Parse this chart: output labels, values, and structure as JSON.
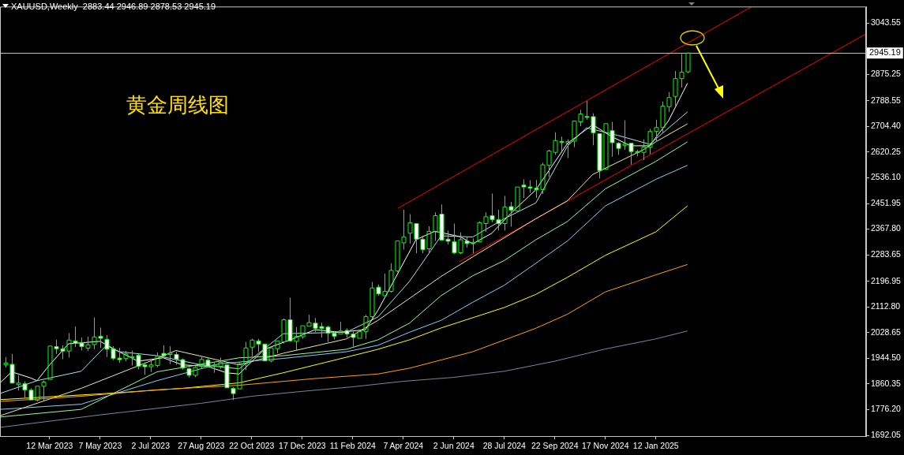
{
  "chart_data": {
    "type": "candlestick",
    "title": "XAUUSD,Weekly  2883.44 2946.89 2878.53 2945.19",
    "annotations": [
      "黄金周线图"
    ],
    "color": "#00ff00",
    "colors": [
      "#00ff00",
      "#ffffff",
      "#00ff00",
      "#ffffff",
      "#ffffff",
      "#00ff00",
      "#00ff00",
      "#00ff00",
      "#ffffff",
      "#ffffff",
      "#00ff00",
      "#ffffff",
      "#ffffff",
      "#00ff00",
      "#00ff00",
      "#ffffff",
      "#ffffff",
      "#ffffff",
      "#ffffff",
      "#00ff00",
      "#00ff00",
      "#ffffff",
      "#ffffff",
      "#00ff00",
      "#00ff00",
      "#ffffff",
      "#00ff00",
      "#ffffff",
      "#ffffff",
      "#ffffff",
      "#00ff00",
      "#00ff00",
      "#ffffff",
      "#00ff00",
      "#00ff00",
      "#ffffff",
      "#ffffff",
      "#00ff00",
      "#00ff00",
      "#00ff00",
      "#ffffff",
      "#ffffff",
      "#00ff00",
      "#00ff00",
      "#00ff00",
      "#ffffff",
      "#00ff00",
      "#00ff00",
      "#00ff00",
      "#ffffff",
      "#ffffff",
      "#ffffff",
      "#ffffff",
      "#00ff00",
      "#ffffff",
      "#ffffff",
      "#00ff00",
      "#00ff00",
      "#00ff00",
      "#ffffff",
      "#00ff00",
      "#00ff00",
      "#00ff00",
      "#00ff00",
      "#00ff00",
      "#ffffff",
      "#ffffff",
      "#00ff00",
      "#00ff00",
      "#ffffff",
      "#ffffff",
      "#ffffff",
      "#00ff00",
      "#ffffff",
      "#00ff00",
      "#00ff00",
      "#00ff00",
      "#ffffff",
      "#ffffff",
      "#00ff00",
      "#ffffff",
      "#00ff00",
      "#ffffff",
      "#ffffff",
      "#ffffff",
      "#00ff00",
      "#00ff00",
      "#00ff00",
      "#ffffff",
      "#00ff00",
      "#00ff00",
      "#00ff00",
      "#ffffff",
      "#ffffff",
      "#ffffff",
      "#00ff00",
      "#ffffff",
      "#ffffff",
      "#00ff00",
      "#ffffff",
      "#ffffff",
      "#00ff00",
      "#00ff00",
      "#00ff00",
      "#00ff00",
      "#00ff00",
      "#00ff00",
      "#00ff00",
      "#00ff00"
    ],
    "x": [
      "2023-01-22",
      "2023-01-29",
      "2023-02-05",
      "2023-02-12",
      "2023-02-19",
      "2023-02-26",
      "2023-03-05",
      "2023-03-12",
      "2023-03-19",
      "2023-03-26",
      "2023-04-02",
      "2023-04-09",
      "2023-04-16",
      "2023-04-23",
      "2023-04-30",
      "2023-05-07",
      "2023-05-14",
      "2023-05-21",
      "2023-05-28",
      "2023-06-04",
      "2023-06-11",
      "2023-06-18",
      "2023-06-25",
      "2023-07-02",
      "2023-07-09",
      "2023-07-16",
      "2023-07-23",
      "2023-07-30",
      "2023-08-06",
      "2023-08-13",
      "2023-08-20",
      "2023-08-27",
      "2023-09-03",
      "2023-09-10",
      "2023-09-17",
      "2023-09-24",
      "2023-10-01",
      "2023-10-08",
      "2023-10-15",
      "2023-10-22",
      "2023-10-29",
      "2023-11-05",
      "2023-11-12",
      "2023-11-19",
      "2023-11-26",
      "2023-12-03",
      "2023-12-10",
      "2023-12-17",
      "2023-12-24",
      "2023-12-31",
      "2024-01-07",
      "2024-01-14",
      "2024-01-21",
      "2024-01-28",
      "2024-02-04",
      "2024-02-11",
      "2024-02-18",
      "2024-02-25",
      "2024-03-03",
      "2024-03-10",
      "2024-03-17",
      "2024-03-24",
      "2024-03-31",
      "2024-04-07",
      "2024-04-14",
      "2024-04-21",
      "2024-04-28",
      "2024-05-05",
      "2024-05-12",
      "2024-05-19",
      "2024-05-26",
      "2024-06-02",
      "2024-06-09",
      "2024-06-16",
      "2024-06-23",
      "2024-06-30",
      "2024-07-07",
      "2024-07-14",
      "2024-07-21",
      "2024-07-28",
      "2024-08-04",
      "2024-08-11",
      "2024-08-18",
      "2024-08-25",
      "2024-09-01",
      "2024-09-08",
      "2024-09-15",
      "2024-09-22",
      "2024-09-29",
      "2024-10-06",
      "2024-10-13",
      "2024-10-20",
      "2024-10-27",
      "2024-11-03",
      "2024-11-10",
      "2024-11-17",
      "2024-11-24",
      "2024-12-01",
      "2024-12-08",
      "2024-12-15",
      "2024-12-22",
      "2024-12-29",
      "2025-01-05",
      "2025-01-12",
      "2025-01-19",
      "2025-01-26",
      "2025-02-02",
      "2025-02-09",
      "2025-02-16"
    ],
    "ohlc": [
      [
        1922.8,
        1948.5,
        1914.3,
        1928.8
      ],
      [
        1924.6,
        1958.7,
        1861.3,
        1863.0
      ],
      [
        1858.0,
        1888.7,
        1839.0,
        1863.0
      ],
      [
        1861.0,
        1869.0,
        1815.0,
        1840.8
      ],
      [
        1840.0,
        1846.0,
        1806.6,
        1808.0
      ],
      [
        1807.0,
        1854.5,
        1803.0,
        1853.0
      ],
      [
        1852.8,
        1871.6,
        1804.9,
        1866.4
      ],
      [
        1875.0,
        1987.0,
        1871.6,
        1984.4
      ],
      [
        1982.7,
        2005.8,
        1958.7,
        1975.8
      ],
      [
        1975.8,
        1987.0,
        1941.7,
        1968.0
      ],
      [
        1968.2,
        2027.1,
        1946.8,
        2004.1
      ],
      [
        2001.5,
        2048.5,
        1981.0,
        1993.0
      ],
      [
        1995.5,
        2012.6,
        1969.9,
        1982.7
      ],
      [
        1977.6,
        2015.2,
        1968.2,
        1988.7
      ],
      [
        1989.5,
        2078.4,
        1974.1,
        2014.3
      ],
      [
        2016.9,
        2045.0,
        1978.4,
        2010.0
      ],
      [
        2006.6,
        2020.3,
        1948.5,
        1974.1
      ],
      [
        1975.8,
        1984.4,
        1938.2,
        1944.2
      ],
      [
        1945.0,
        1978.4,
        1929.7,
        1940.0
      ],
      [
        1943.4,
        1969.0,
        1934.8,
        1958.7
      ],
      [
        1948.5,
        1969.9,
        1921.1,
        1949.5
      ],
      [
        1954.5,
        1958.7,
        1908.3,
        1918.6
      ],
      [
        1922.8,
        1931.4,
        1890.4,
        1916.9
      ],
      [
        1916.9,
        1935.7,
        1899.8,
        1922.8
      ],
      [
        1921.0,
        1963.9,
        1915.0,
        1951.0
      ],
      [
        1960.5,
        1987.0,
        1944.2,
        1952.8
      ],
      [
        1957.0,
        1983.6,
        1925.0,
        1961.0
      ],
      [
        1957.0,
        1965.6,
        1922.9,
        1941.6
      ],
      [
        1940.0,
        1944.2,
        1907.5,
        1912.6
      ],
      [
        1910.0,
        1914.3,
        1881.8,
        1888.7
      ],
      [
        1888.7,
        1918.6,
        1882.7,
        1914.3
      ],
      [
        1918.6,
        1948.5,
        1910.0,
        1940.6
      ],
      [
        1938.3,
        1946.8,
        1914.3,
        1918.6
      ],
      [
        1918.6,
        1931.4,
        1897.2,
        1922.8
      ],
      [
        1918.6,
        1946.8,
        1910.0,
        1931.4
      ],
      [
        1922.8,
        1924.6,
        1844.2,
        1847.6
      ],
      [
        1845.9,
        1850.2,
        1807.5,
        1828.8
      ],
      [
        1844.2,
        1931.4,
        1841.7,
        1927.1
      ],
      [
        1927.0,
        1998.1,
        1905.8,
        1978.4
      ],
      [
        1981.0,
        2008.4,
        1951.0,
        2004.1
      ],
      [
        2001.5,
        2008.4,
        1965.6,
        1991.3
      ],
      [
        1991.3,
        1993.0,
        1933.1,
        1935.7
      ],
      [
        1935.7,
        1982.7,
        1931.4,
        1978.4
      ],
      [
        1975.9,
        2004.1,
        1961.3,
        2001.5
      ],
      [
        1998.1,
        2075.0,
        1993.0,
        2070.7
      ],
      [
        2070.7,
        2143.4,
        1999.8,
        2001.5
      ],
      [
        1999.8,
        2046.8,
        1969.9,
        2016.9
      ],
      [
        2015.2,
        2052.8,
        2008.4,
        2051.1
      ],
      [
        2049.4,
        2087.0,
        2046.8,
        2061.3
      ],
      [
        2059.6,
        2076.7,
        2029.7,
        2042.5
      ],
      [
        2048.5,
        2061.3,
        2012.6,
        2042.5
      ],
      [
        2046.8,
        2051.1,
        1998.1,
        2027.1
      ],
      [
        2027.1,
        2034.0,
        2005.8,
        2016.9
      ],
      [
        2023.7,
        2064.0,
        2021.2,
        2034.0
      ],
      [
        2035.7,
        2042.5,
        2012.6,
        2023.7
      ],
      [
        2023.7,
        2032.3,
        1982.7,
        2012.6
      ],
      [
        2010.0,
        2035.7,
        2008.4,
        2032.3
      ],
      [
        2032.3,
        2087.0,
        2008.4,
        2081.0
      ],
      [
        2081.0,
        2194.7,
        2076.0,
        2175.0
      ],
      [
        2177.6,
        2186.2,
        2149.4,
        2155.4
      ],
      [
        2149.4,
        2222.0,
        2146.8,
        2164.0
      ],
      [
        2164.0,
        2256.0,
        2160.0,
        2232.3
      ],
      [
        2230.6,
        2330.5,
        2226.3,
        2328.9
      ],
      [
        2322.9,
        2431.5,
        2300.7,
        2341.7
      ],
      [
        2354.6,
        2417.0,
        2320.4,
        2388.8
      ],
      [
        2386.2,
        2390.0,
        2288.7,
        2334.9
      ],
      [
        2334.9,
        2346.0,
        2288.7,
        2300.7
      ],
      [
        2303.3,
        2377.6,
        2288.7,
        2360.5
      ],
      [
        2358.8,
        2423.0,
        2328.9,
        2411.8
      ],
      [
        2417.0,
        2448.6,
        2328.9,
        2331.5
      ],
      [
        2334.9,
        2363.1,
        2317.8,
        2328.1
      ],
      [
        2326.4,
        2386.2,
        2286.2,
        2290.4
      ],
      [
        2290.4,
        2357.1,
        2286.2,
        2333.2
      ],
      [
        2328.9,
        2341.7,
        2307.5,
        2320.4
      ],
      [
        2320.4,
        2337.4,
        2288.7,
        2324.6
      ],
      [
        2326.4,
        2393.0,
        2324.6,
        2388.8
      ],
      [
        2386.2,
        2423.0,
        2358.8,
        2408.4
      ],
      [
        2411.8,
        2484.5,
        2390.5,
        2399.0
      ],
      [
        2399.0,
        2431.5,
        2363.1,
        2386.2
      ],
      [
        2386.2,
        2476.8,
        2363.1,
        2440.0
      ],
      [
        2441.7,
        2457.1,
        2376.0,
        2429.8
      ],
      [
        2427.2,
        2508.4,
        2424.0,
        2505.9
      ],
      [
        2512.0,
        2531.0,
        2470.0,
        2506.0
      ],
      [
        2506.0,
        2528.0,
        2487.0,
        2502.0
      ],
      [
        2502.0,
        2529.0,
        2470.0,
        2497.0
      ],
      [
        2497.5,
        2585.5,
        2483.0,
        2578.5
      ],
      [
        2576.8,
        2628.0,
        2538.0,
        2623.8
      ],
      [
        2619.5,
        2685.3,
        2611.0,
        2658.0
      ],
      [
        2655.4,
        2670.8,
        2623.8,
        2652.0
      ],
      [
        2649.4,
        2662.3,
        2600.7,
        2655.4
      ],
      [
        2656.3,
        2724.0,
        2636.6,
        2722.1
      ],
      [
        2719.5,
        2758.9,
        2705.0,
        2745.2
      ],
      [
        2736.8,
        2788.0,
        2726.4,
        2735.0
      ],
      [
        2736.6,
        2747.7,
        2642.6,
        2683.6
      ],
      [
        2681.0,
        2683.6,
        2534.0,
        2559.7
      ],
      [
        2564.0,
        2715.0,
        2562.3,
        2713.5
      ],
      [
        2690.5,
        2719.5,
        2605.0,
        2651.1
      ],
      [
        2649.4,
        2653.7,
        2611.0,
        2632.3
      ],
      [
        2642.6,
        2724.7,
        2628.0,
        2646.9
      ],
      [
        2649.4,
        2651.1,
        2579.3,
        2622.1
      ],
      [
        2622.1,
        2628.0,
        2606.7,
        2618.7
      ],
      [
        2619.5,
        2662.3,
        2594.0,
        2636.6
      ],
      [
        2636.6,
        2696.5,
        2613.5,
        2688.0
      ],
      [
        2688.0,
        2726.4,
        2653.7,
        2700.7
      ],
      [
        2700.7,
        2786.2,
        2683.6,
        2770.8
      ],
      [
        2769.1,
        2817.0,
        2752.0,
        2799.0
      ],
      [
        2803.0,
        2886.0,
        2773.0,
        2861.0
      ],
      [
        2861.0,
        2942.0,
        2832.0,
        2882.0
      ],
      [
        2883.44,
        2946.89,
        2878.53,
        2945.19
      ]
    ],
    "series": [
      {
        "type": "line",
        "color": "#778899",
        "x": [
          "2023-01-16",
          "2023-05-07",
          "2023-08-27",
          "2023-10-22",
          "2023-12-17",
          "2024-02-11",
          "2024-04-07",
          "2024-06-02",
          "2024-07-28",
          "2024-09-22",
          "2024-11-17",
          "2025-01-12",
          "2025-02-16"
        ],
        "values": [
          1718,
          1759,
          1797,
          1820,
          1836,
          1851,
          1869,
          1882,
          1902,
          1935,
          1975,
          2008,
          2034
        ]
      },
      {
        "type": "line",
        "color": "#ffa500",
        "x": [
          "2023-01-16",
          "2023-04-16",
          "2023-07-09",
          "2023-10-08",
          "2023-12-31",
          "2024-03-10",
          "2024-04-14",
          "2024-06-23",
          "2024-09-01",
          "2024-10-06",
          "2024-11-17",
          "2025-01-12",
          "2025-02-16"
        ],
        "values": [
          1803,
          1820,
          1841,
          1856,
          1878,
          1893,
          1912,
          1966,
          2043,
          2089,
          2162,
          2218,
          2252
        ]
      },
      {
        "type": "line",
        "color": "#ffff00",
        "x": [
          "2023-01-16",
          "2023-05-14",
          "2023-08-06",
          "2023-10-08",
          "2023-11-26",
          "2024-02-04",
          "2024-03-10",
          "2024-04-14",
          "2024-05-19",
          "2024-07-28",
          "2024-09-01",
          "2024-10-06",
          "2024-11-17",
          "2025-01-12",
          "2025-02-16"
        ],
        "values": [
          1809,
          1829,
          1846,
          1864,
          1897,
          1948,
          1974,
          2005,
          2044,
          2111,
          2154,
          2210,
          2282,
          2359,
          2444
        ]
      },
      {
        "type": "line",
        "color": "#87cefa",
        "x": [
          "2023-01-16",
          "2023-04-16",
          "2023-07-09",
          "2023-09-17",
          "2023-11-26",
          "2024-02-04",
          "2024-03-10",
          "2024-04-14",
          "2024-05-19",
          "2024-06-23",
          "2024-07-28",
          "2024-09-01",
          "2024-10-06",
          "2024-11-17",
          "2025-01-12",
          "2025-02-16"
        ],
        "values": [
          1777,
          1794,
          1871,
          1927,
          1944,
          1966,
          1987,
          2030,
          2069,
          2128,
          2184,
          2256,
          2329,
          2444,
          2531,
          2577
        ]
      },
      {
        "type": "line",
        "color": "#98fb98",
        "x": [
          "2023-01-16",
          "2023-04-16",
          "2023-07-09",
          "2023-10-08",
          "2023-11-26",
          "2024-02-04",
          "2024-03-10",
          "2024-04-14",
          "2024-05-19",
          "2024-06-23",
          "2024-07-28",
          "2024-09-01",
          "2024-10-06",
          "2024-11-17",
          "2025-01-12",
          "2025-02-16"
        ],
        "values": [
          1752,
          1777,
          1900,
          1946,
          1953,
          1974,
          2005,
          2060,
          2150,
          2215,
          2265,
          2333,
          2393,
          2500,
          2590,
          2654
        ]
      },
      {
        "type": "line",
        "color": "#eee8aa",
        "x": [
          "2023-01-16",
          "2023-04-16",
          "2023-07-09",
          "2023-07-30",
          "2023-10-08",
          "2023-11-26",
          "2024-02-04",
          "2024-03-10",
          "2024-05-19",
          "2024-06-23",
          "2024-09-01",
          "2024-10-06",
          "2024-11-03",
          "2024-12-29",
          "2025-01-12",
          "2025-02-16"
        ],
        "values": [
          1756,
          1846,
          1944,
          1970,
          1923,
          1961,
          2008,
          2069,
          2213,
          2277,
          2402,
          2461,
          2547,
          2628,
          2654,
          2713
        ]
      },
      {
        "type": "line",
        "color": "#b0e0e6",
        "x": [
          "2023-01-16",
          "2023-02-26",
          "2023-04-16",
          "2023-05-14",
          "2023-05-28",
          "2023-07-09",
          "2023-08-27",
          "2023-10-08",
          "2023-11-26",
          "2024-02-04",
          "2024-03-10",
          "2024-04-14",
          "2024-05-19",
          "2024-06-23",
          "2024-07-28",
          "2024-09-01",
          "2024-10-06",
          "2024-10-27",
          "2024-12-01",
          "2025-01-05",
          "2025-02-16"
        ],
        "values": [
          1829,
          1871,
          1902,
          1987,
          1966,
          1953,
          1923,
          1910,
          2025,
          2030,
          2080,
          2197,
          2346,
          2342,
          2402,
          2454,
          2640,
          2700,
          2675,
          2646,
          2752
        ]
      },
      {
        "type": "line",
        "color": "#ffffff",
        "x": [
          "2023-01-16",
          "2023-01-29",
          "2023-02-19",
          "2023-02-26",
          "2023-03-12",
          "2023-04-02",
          "2023-05-07",
          "2023-05-28",
          "2023-06-18",
          "2023-07-16",
          "2023-08-06",
          "2023-09-03",
          "2023-09-24",
          "2023-10-08",
          "2023-11-05",
          "2023-12-03",
          "2023-12-31",
          "2024-01-28",
          "2024-02-25",
          "2024-03-10",
          "2024-04-07",
          "2024-04-21",
          "2024-05-12",
          "2024-06-09",
          "2024-06-23",
          "2024-07-14",
          "2024-08-04",
          "2024-09-01",
          "2024-10-06",
          "2024-11-03",
          "2024-11-24",
          "2024-12-15",
          "2025-01-05",
          "2025-01-26",
          "2025-02-16"
        ],
        "values": [
          1864,
          1900,
          1880,
          1871,
          1923,
          1992,
          2000,
          1966,
          1935,
          1946,
          1923,
          1918,
          1897,
          1893,
          1974,
          2004,
          2038,
          2030,
          2038,
          2102,
          2256,
          2333,
          2361,
          2343,
          2320,
          2354,
          2419,
          2497,
          2649,
          2710,
          2671,
          2641,
          2641,
          2723,
          2846
        ]
      },
      {
        "type": "line",
        "color": "#ff0000",
        "x": [
          "2024-04-01",
          "2025-04-28"
        ],
        "values": [
          2436,
          3097
        ]
      },
      {
        "type": "line",
        "color": "#ff0000",
        "x": [
          "2024-06-08",
          "2025-09-02"
        ],
        "values": [
          2261,
          3008
        ]
      }
    ],
    "ref_lines": [
      {
        "axis": "y",
        "value": 2945.19,
        "label": "2945.19",
        "color": "#c0c0c0"
      }
    ],
    "xlim": [
      "2023-01-16",
      "2025-09-02"
    ],
    "xticks": [
      {
        "value": "2023-03-12",
        "label": "12 Mar 2023"
      },
      {
        "value": "2023-05-07",
        "label": "7 May 2023"
      },
      {
        "value": "2023-07-02",
        "label": "2 Jul 2023"
      },
      {
        "value": "2023-08-27",
        "label": "27 Aug 2023"
      },
      {
        "value": "2023-10-22",
        "label": "22 Oct 2023"
      },
      {
        "value": "2023-12-17",
        "label": "17 Dec 2023"
      },
      {
        "value": "2024-02-11",
        "label": "11 Feb 2024"
      },
      {
        "value": "2024-04-07",
        "label": "7 Apr 2024"
      },
      {
        "value": "2024-06-02",
        "label": "2 Jun 2024"
      },
      {
        "value": "2024-07-28",
        "label": "28 Jul 2024"
      },
      {
        "value": "2024-09-22",
        "label": "22 Sep 2024"
      },
      {
        "value": "2024-11-17",
        "label": "17 Nov 2024"
      },
      {
        "value": "2025-01-12",
        "label": "12 Jan 2025"
      }
    ],
    "ylim": [
      1689.5,
      3097.4
    ],
    "yticks": [
      1692.05,
      {
        "value": 1776.2,
        "label": "1776.20"
      },
      1860.35,
      {
        "value": 1944.5,
        "label": "1944.50"
      },
      2028.65,
      {
        "value": 2112.8,
        "label": "2112.80"
      },
      2196.95,
      2283.65,
      {
        "value": 2367.8,
        "label": "2367.80"
      },
      2451.95,
      {
        "value": 2536.1,
        "label": "2536.10"
      },
      2620.25,
      {
        "value": 2704.4,
        "label": "2704.40"
      },
      2788.55,
      2875.25,
      3043.55
    ]
  }
}
